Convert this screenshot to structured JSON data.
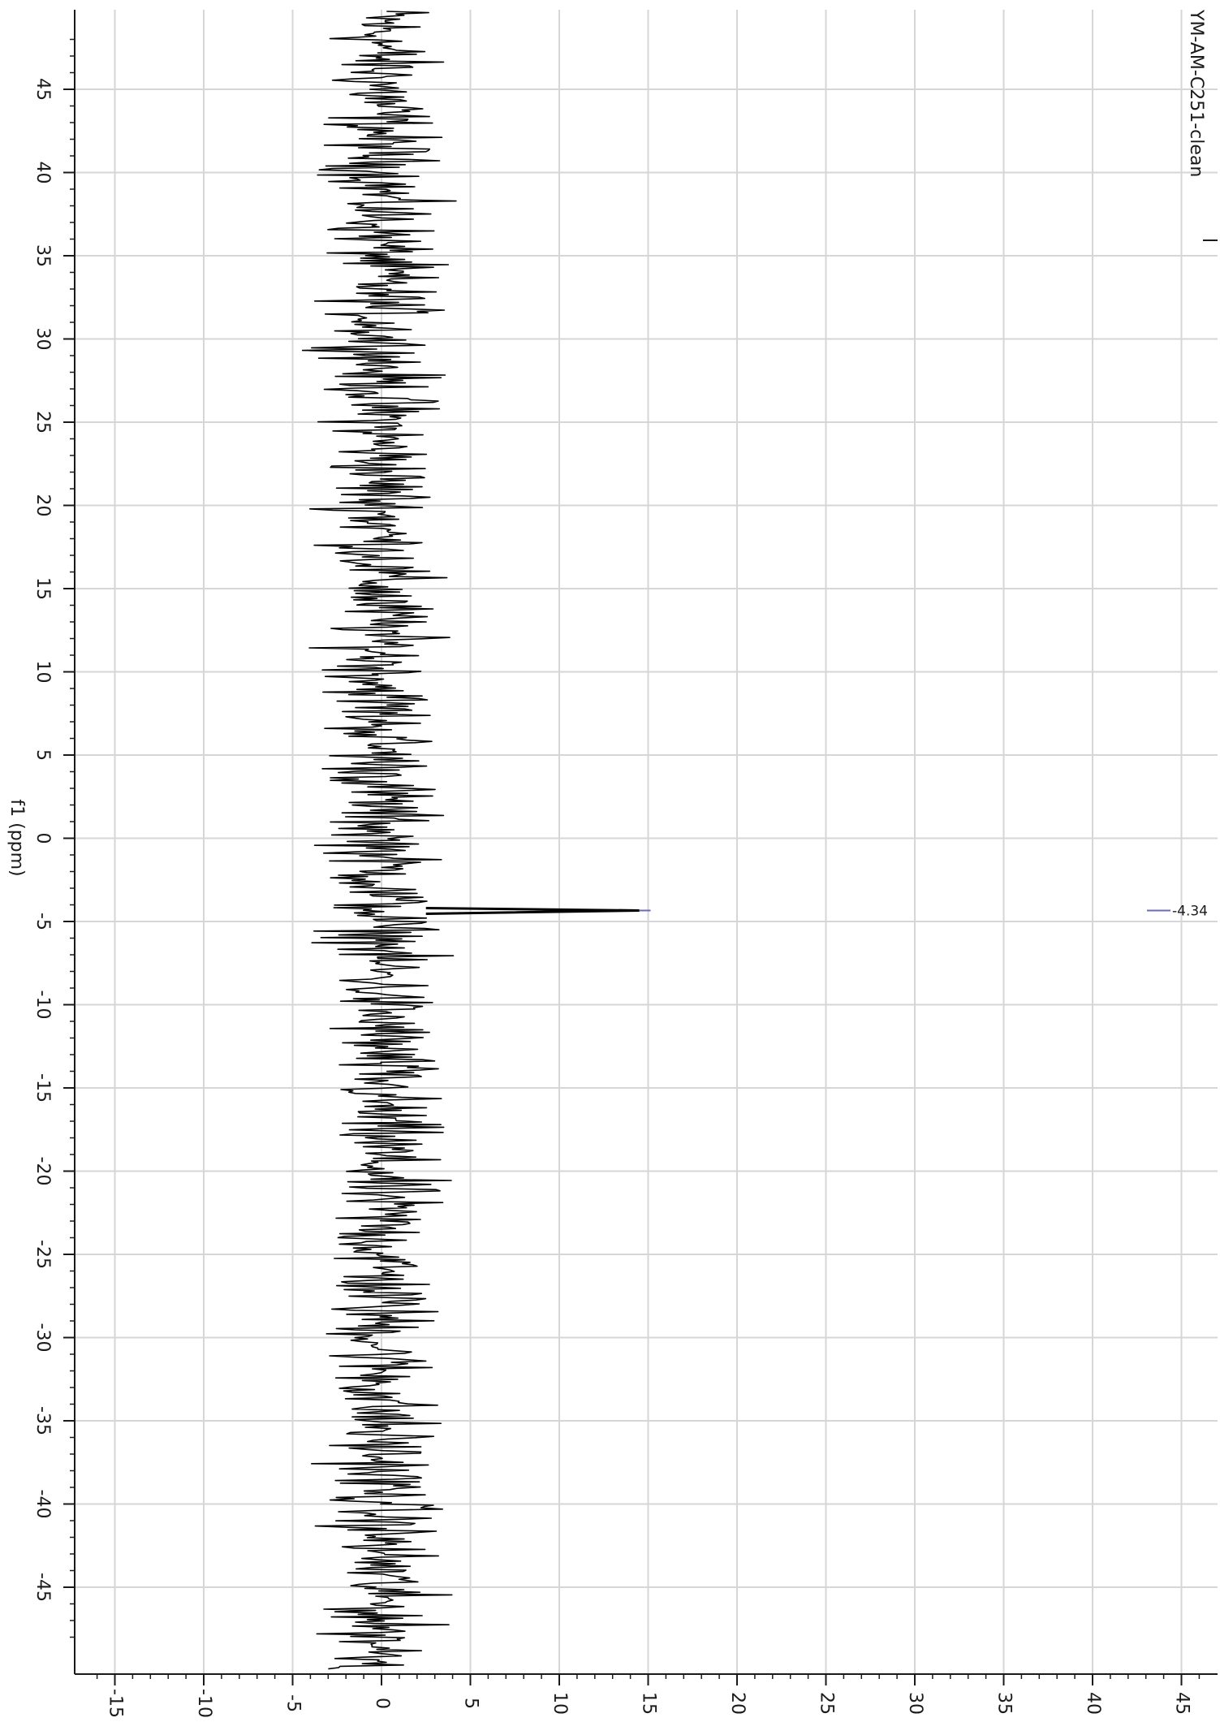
{
  "chart_data": {
    "type": "line",
    "title": "YM-AM-C251-clean",
    "orientation": "rotated-90-clockwise",
    "xlabel": "f1 (ppm)",
    "ylabel": "",
    "f1_axis_range": [
      49,
      -49
    ],
    "f1_ticks": [
      45,
      40,
      35,
      30,
      25,
      20,
      15,
      10,
      5,
      0,
      -5,
      -10,
      -15,
      -20,
      -25,
      -30,
      -35,
      -40,
      -45
    ],
    "intensity_axis_range": [
      -17,
      47
    ],
    "intensity_ticks": [
      -15,
      -10,
      -5,
      0,
      5,
      10,
      15,
      20,
      25,
      30,
      35,
      40,
      45
    ],
    "grid": true,
    "series": [
      {
        "color": "#000000",
        "noise_level": 2.5,
        "peaks": [
          {
            "ppm": -4.34,
            "intensity": 14.5
          }
        ]
      }
    ],
    "annotations": [
      {
        "text": "-4.34",
        "ppm": -4.34,
        "color": "#2b2b8f"
      }
    ]
  }
}
